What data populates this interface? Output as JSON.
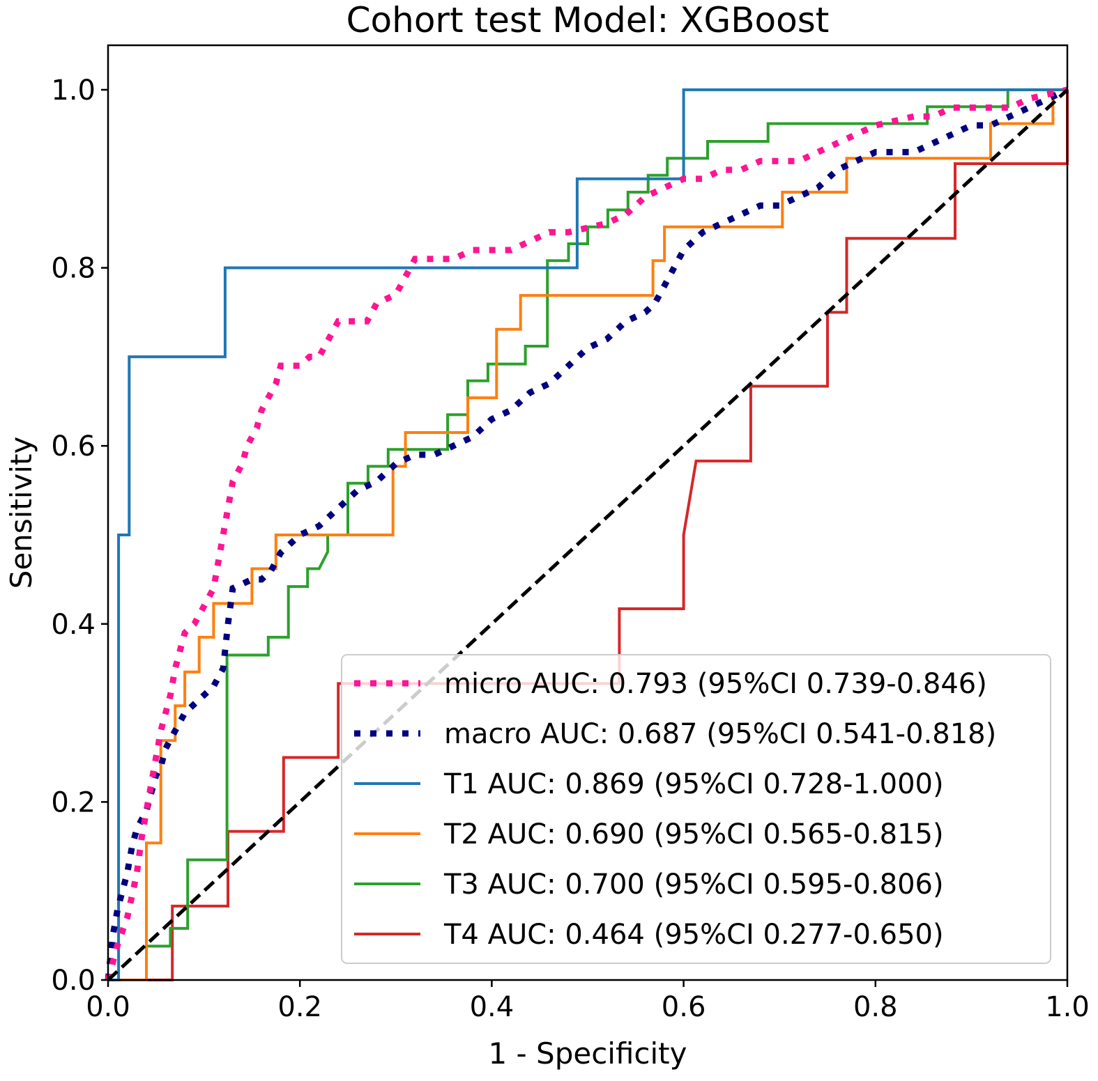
{
  "chart_data": {
    "type": "line",
    "title": "Cohort test Model: XGBoost",
    "xlabel": "1 - Specificity",
    "ylabel": "Sensitivity",
    "xlim": [
      0,
      1
    ],
    "ylim": [
      0,
      1.05
    ],
    "xticks": [
      0,
      0.2,
      0.4,
      0.6,
      0.8,
      1.0
    ],
    "yticks": [
      0,
      0.2,
      0.4,
      0.6,
      0.8,
      1.0
    ],
    "xtick_labels": [
      "0.0",
      "0.2",
      "0.4",
      "0.6",
      "0.8",
      "1.0"
    ],
    "ytick_labels": [
      "0.0",
      "0.2",
      "0.4",
      "0.6",
      "0.8",
      "1.0"
    ],
    "legend_position": "lower-right",
    "series": [
      {
        "name": "micro",
        "label": "micro AUC: 0.793 (95%CI 0.739-0.846)",
        "color": "#ff1493",
        "style": "dotted",
        "points": [
          [
            0,
            0
          ],
          [
            0.003,
            0.01
          ],
          [
            0.005,
            0.02
          ],
          [
            0.01,
            0.04
          ],
          [
            0.02,
            0.07
          ],
          [
            0.03,
            0.12
          ],
          [
            0.035,
            0.16
          ],
          [
            0.04,
            0.19
          ],
          [
            0.045,
            0.22
          ],
          [
            0.05,
            0.25
          ],
          [
            0.055,
            0.28
          ],
          [
            0.06,
            0.3
          ],
          [
            0.065,
            0.32
          ],
          [
            0.07,
            0.35
          ],
          [
            0.075,
            0.37
          ],
          [
            0.08,
            0.39
          ],
          [
            0.09,
            0.4
          ],
          [
            0.1,
            0.42
          ],
          [
            0.11,
            0.44
          ],
          [
            0.115,
            0.47
          ],
          [
            0.12,
            0.5
          ],
          [
            0.125,
            0.53
          ],
          [
            0.13,
            0.56
          ],
          [
            0.14,
            0.58
          ],
          [
            0.145,
            0.6
          ],
          [
            0.155,
            0.62
          ],
          [
            0.16,
            0.64
          ],
          [
            0.17,
            0.66
          ],
          [
            0.175,
            0.67
          ],
          [
            0.18,
            0.69
          ],
          [
            0.2,
            0.69
          ],
          [
            0.21,
            0.7
          ],
          [
            0.22,
            0.7
          ],
          [
            0.23,
            0.72
          ],
          [
            0.24,
            0.74
          ],
          [
            0.25,
            0.74
          ],
          [
            0.27,
            0.74
          ],
          [
            0.28,
            0.76
          ],
          [
            0.3,
            0.77
          ],
          [
            0.31,
            0.79
          ],
          [
            0.32,
            0.81
          ],
          [
            0.36,
            0.81
          ],
          [
            0.38,
            0.82
          ],
          [
            0.42,
            0.82
          ],
          [
            0.44,
            0.83
          ],
          [
            0.46,
            0.84
          ],
          [
            0.48,
            0.84
          ],
          [
            0.52,
            0.85
          ],
          [
            0.54,
            0.86
          ],
          [
            0.55,
            0.87
          ],
          [
            0.56,
            0.88
          ],
          [
            0.58,
            0.89
          ],
          [
            0.6,
            0.9
          ],
          [
            0.62,
            0.9
          ],
          [
            0.64,
            0.91
          ],
          [
            0.66,
            0.91
          ],
          [
            0.68,
            0.92
          ],
          [
            0.72,
            0.92
          ],
          [
            0.74,
            0.93
          ],
          [
            0.76,
            0.94
          ],
          [
            0.78,
            0.95
          ],
          [
            0.8,
            0.96
          ],
          [
            0.84,
            0.97
          ],
          [
            0.86,
            0.97
          ],
          [
            0.88,
            0.98
          ],
          [
            0.94,
            0.98
          ],
          [
            0.96,
            0.99
          ],
          [
            1.0,
            1.0
          ]
        ]
      },
      {
        "name": "macro",
        "label": "macro AUC: 0.687 (95%CI 0.541-0.818)",
        "color": "#000080",
        "style": "dotted",
        "points": [
          [
            0,
            0
          ],
          [
            0.003,
            0.03
          ],
          [
            0.005,
            0.05
          ],
          [
            0.01,
            0.08
          ],
          [
            0.015,
            0.1
          ],
          [
            0.02,
            0.12
          ],
          [
            0.025,
            0.15
          ],
          [
            0.03,
            0.17
          ],
          [
            0.035,
            0.18
          ],
          [
            0.04,
            0.19
          ],
          [
            0.045,
            0.21
          ],
          [
            0.05,
            0.23
          ],
          [
            0.055,
            0.24
          ],
          [
            0.06,
            0.26
          ],
          [
            0.065,
            0.27
          ],
          [
            0.07,
            0.28
          ],
          [
            0.08,
            0.3
          ],
          [
            0.09,
            0.31
          ],
          [
            0.1,
            0.32
          ],
          [
            0.11,
            0.33
          ],
          [
            0.12,
            0.35
          ],
          [
            0.125,
            0.4
          ],
          [
            0.13,
            0.44
          ],
          [
            0.15,
            0.45
          ],
          [
            0.16,
            0.45
          ],
          [
            0.17,
            0.46
          ],
          [
            0.18,
            0.48
          ],
          [
            0.19,
            0.49
          ],
          [
            0.2,
            0.5
          ],
          [
            0.22,
            0.51
          ],
          [
            0.24,
            0.53
          ],
          [
            0.26,
            0.55
          ],
          [
            0.28,
            0.56
          ],
          [
            0.3,
            0.58
          ],
          [
            0.32,
            0.59
          ],
          [
            0.34,
            0.59
          ],
          [
            0.36,
            0.6
          ],
          [
            0.38,
            0.61
          ],
          [
            0.4,
            0.63
          ],
          [
            0.42,
            0.64
          ],
          [
            0.44,
            0.66
          ],
          [
            0.46,
            0.67
          ],
          [
            0.48,
            0.69
          ],
          [
            0.49,
            0.7
          ],
          [
            0.5,
            0.71
          ],
          [
            0.52,
            0.72
          ],
          [
            0.54,
            0.74
          ],
          [
            0.56,
            0.75
          ],
          [
            0.57,
            0.76
          ],
          [
            0.58,
            0.78
          ],
          [
            0.59,
            0.8
          ],
          [
            0.6,
            0.82
          ],
          [
            0.62,
            0.84
          ],
          [
            0.64,
            0.85
          ],
          [
            0.66,
            0.86
          ],
          [
            0.68,
            0.87
          ],
          [
            0.7,
            0.87
          ],
          [
            0.72,
            0.88
          ],
          [
            0.74,
            0.89
          ],
          [
            0.76,
            0.91
          ],
          [
            0.78,
            0.92
          ],
          [
            0.8,
            0.93
          ],
          [
            0.84,
            0.93
          ],
          [
            0.86,
            0.94
          ],
          [
            0.88,
            0.95
          ],
          [
            0.9,
            0.96
          ],
          [
            0.92,
            0.96
          ],
          [
            0.94,
            0.97
          ],
          [
            0.96,
            0.98
          ],
          [
            1.0,
            1.0
          ]
        ]
      },
      {
        "name": "T1",
        "label": "T1 AUC: 0.869 (95%CI 0.728-1.000)",
        "color": "#1f77b4",
        "style": "solid",
        "points": [
          [
            0,
            0
          ],
          [
            0.011,
            0
          ],
          [
            0.011,
            0.5
          ],
          [
            0.022,
            0.5
          ],
          [
            0.022,
            0.7
          ],
          [
            0.122,
            0.7
          ],
          [
            0.122,
            0.8
          ],
          [
            0.489,
            0.8
          ],
          [
            0.489,
            0.9
          ],
          [
            0.6,
            0.9
          ],
          [
            0.6,
            1.0
          ],
          [
            1.0,
            1.0
          ]
        ]
      },
      {
        "name": "T2",
        "label": "T2 AUC: 0.690 (95%CI 0.565-0.815)",
        "color": "#ff7f0e",
        "style": "solid",
        "points": [
          [
            0,
            0
          ],
          [
            0.04,
            0
          ],
          [
            0.04,
            0.154
          ],
          [
            0.055,
            0.154
          ],
          [
            0.055,
            0.269
          ],
          [
            0.07,
            0.269
          ],
          [
            0.07,
            0.308
          ],
          [
            0.08,
            0.308
          ],
          [
            0.08,
            0.346
          ],
          [
            0.095,
            0.346
          ],
          [
            0.095,
            0.385
          ],
          [
            0.11,
            0.385
          ],
          [
            0.11,
            0.423
          ],
          [
            0.15,
            0.423
          ],
          [
            0.15,
            0.462
          ],
          [
            0.175,
            0.462
          ],
          [
            0.175,
            0.5
          ],
          [
            0.297,
            0.5
          ],
          [
            0.297,
            0.577
          ],
          [
            0.31,
            0.577
          ],
          [
            0.31,
            0.615
          ],
          [
            0.375,
            0.615
          ],
          [
            0.375,
            0.654
          ],
          [
            0.405,
            0.654
          ],
          [
            0.405,
            0.731
          ],
          [
            0.43,
            0.731
          ],
          [
            0.43,
            0.769
          ],
          [
            0.568,
            0.769
          ],
          [
            0.568,
            0.808
          ],
          [
            0.58,
            0.808
          ],
          [
            0.58,
            0.846
          ],
          [
            0.703,
            0.846
          ],
          [
            0.703,
            0.885
          ],
          [
            0.77,
            0.885
          ],
          [
            0.77,
            0.923
          ],
          [
            0.92,
            0.923
          ],
          [
            0.92,
            0.962
          ],
          [
            0.985,
            0.962
          ],
          [
            0.985,
            1.0
          ],
          [
            1.0,
            1.0
          ]
        ]
      },
      {
        "name": "T3",
        "label": "T3 AUC: 0.700 (95%CI 0.595-0.806)",
        "color": "#2ca02c",
        "style": "solid",
        "points": [
          [
            0,
            0
          ],
          [
            0.04,
            0
          ],
          [
            0.04,
            0.038
          ],
          [
            0.065,
            0.038
          ],
          [
            0.065,
            0.058
          ],
          [
            0.083,
            0.058
          ],
          [
            0.083,
            0.135
          ],
          [
            0.124,
            0.135
          ],
          [
            0.124,
            0.365
          ],
          [
            0.167,
            0.365
          ],
          [
            0.167,
            0.385
          ],
          [
            0.188,
            0.385
          ],
          [
            0.188,
            0.442
          ],
          [
            0.208,
            0.442
          ],
          [
            0.208,
            0.462
          ],
          [
            0.22,
            0.462
          ],
          [
            0.229,
            0.481
          ],
          [
            0.229,
            0.5
          ],
          [
            0.25,
            0.5
          ],
          [
            0.25,
            0.558
          ],
          [
            0.271,
            0.558
          ],
          [
            0.271,
            0.577
          ],
          [
            0.292,
            0.577
          ],
          [
            0.292,
            0.596
          ],
          [
            0.354,
            0.596
          ],
          [
            0.354,
            0.635
          ],
          [
            0.375,
            0.635
          ],
          [
            0.375,
            0.673
          ],
          [
            0.396,
            0.673
          ],
          [
            0.396,
            0.692
          ],
          [
            0.435,
            0.692
          ],
          [
            0.435,
            0.712
          ],
          [
            0.458,
            0.712
          ],
          [
            0.458,
            0.808
          ],
          [
            0.48,
            0.808
          ],
          [
            0.48,
            0.827
          ],
          [
            0.5,
            0.827
          ],
          [
            0.5,
            0.846
          ],
          [
            0.521,
            0.846
          ],
          [
            0.521,
            0.865
          ],
          [
            0.542,
            0.865
          ],
          [
            0.542,
            0.885
          ],
          [
            0.563,
            0.885
          ],
          [
            0.563,
            0.904
          ],
          [
            0.583,
            0.904
          ],
          [
            0.583,
            0.923
          ],
          [
            0.625,
            0.923
          ],
          [
            0.625,
            0.942
          ],
          [
            0.688,
            0.942
          ],
          [
            0.688,
            0.962
          ],
          [
            0.854,
            0.962
          ],
          [
            0.854,
            0.981
          ],
          [
            0.938,
            0.981
          ],
          [
            0.938,
            1.0
          ],
          [
            1.0,
            1.0
          ]
        ]
      },
      {
        "name": "T4",
        "label": "T4 AUC: 0.464 (95%CI 0.277-0.650)",
        "color": "#d62728",
        "style": "solid",
        "points": [
          [
            0,
            0
          ],
          [
            0.067,
            0
          ],
          [
            0.067,
            0.083
          ],
          [
            0.125,
            0.083
          ],
          [
            0.125,
            0.167
          ],
          [
            0.183,
            0.167
          ],
          [
            0.183,
            0.25
          ],
          [
            0.24,
            0.25
          ],
          [
            0.24,
            0.333
          ],
          [
            0.533,
            0.333
          ],
          [
            0.533,
            0.417
          ],
          [
            0.6,
            0.417
          ],
          [
            0.6,
            0.5
          ],
          [
            0.613,
            0.583
          ],
          [
            0.67,
            0.583
          ],
          [
            0.67,
            0.667
          ],
          [
            0.75,
            0.667
          ],
          [
            0.75,
            0.75
          ],
          [
            0.77,
            0.75
          ],
          [
            0.77,
            0.833
          ],
          [
            0.883,
            0.833
          ],
          [
            0.883,
            0.917
          ],
          [
            1.0,
            0.917
          ],
          [
            1.0,
            1.0
          ]
        ]
      },
      {
        "name": "chance",
        "label": "",
        "color": "#000000",
        "style": "dashed",
        "points": [
          [
            0,
            0
          ],
          [
            1,
            1
          ]
        ]
      }
    ]
  }
}
